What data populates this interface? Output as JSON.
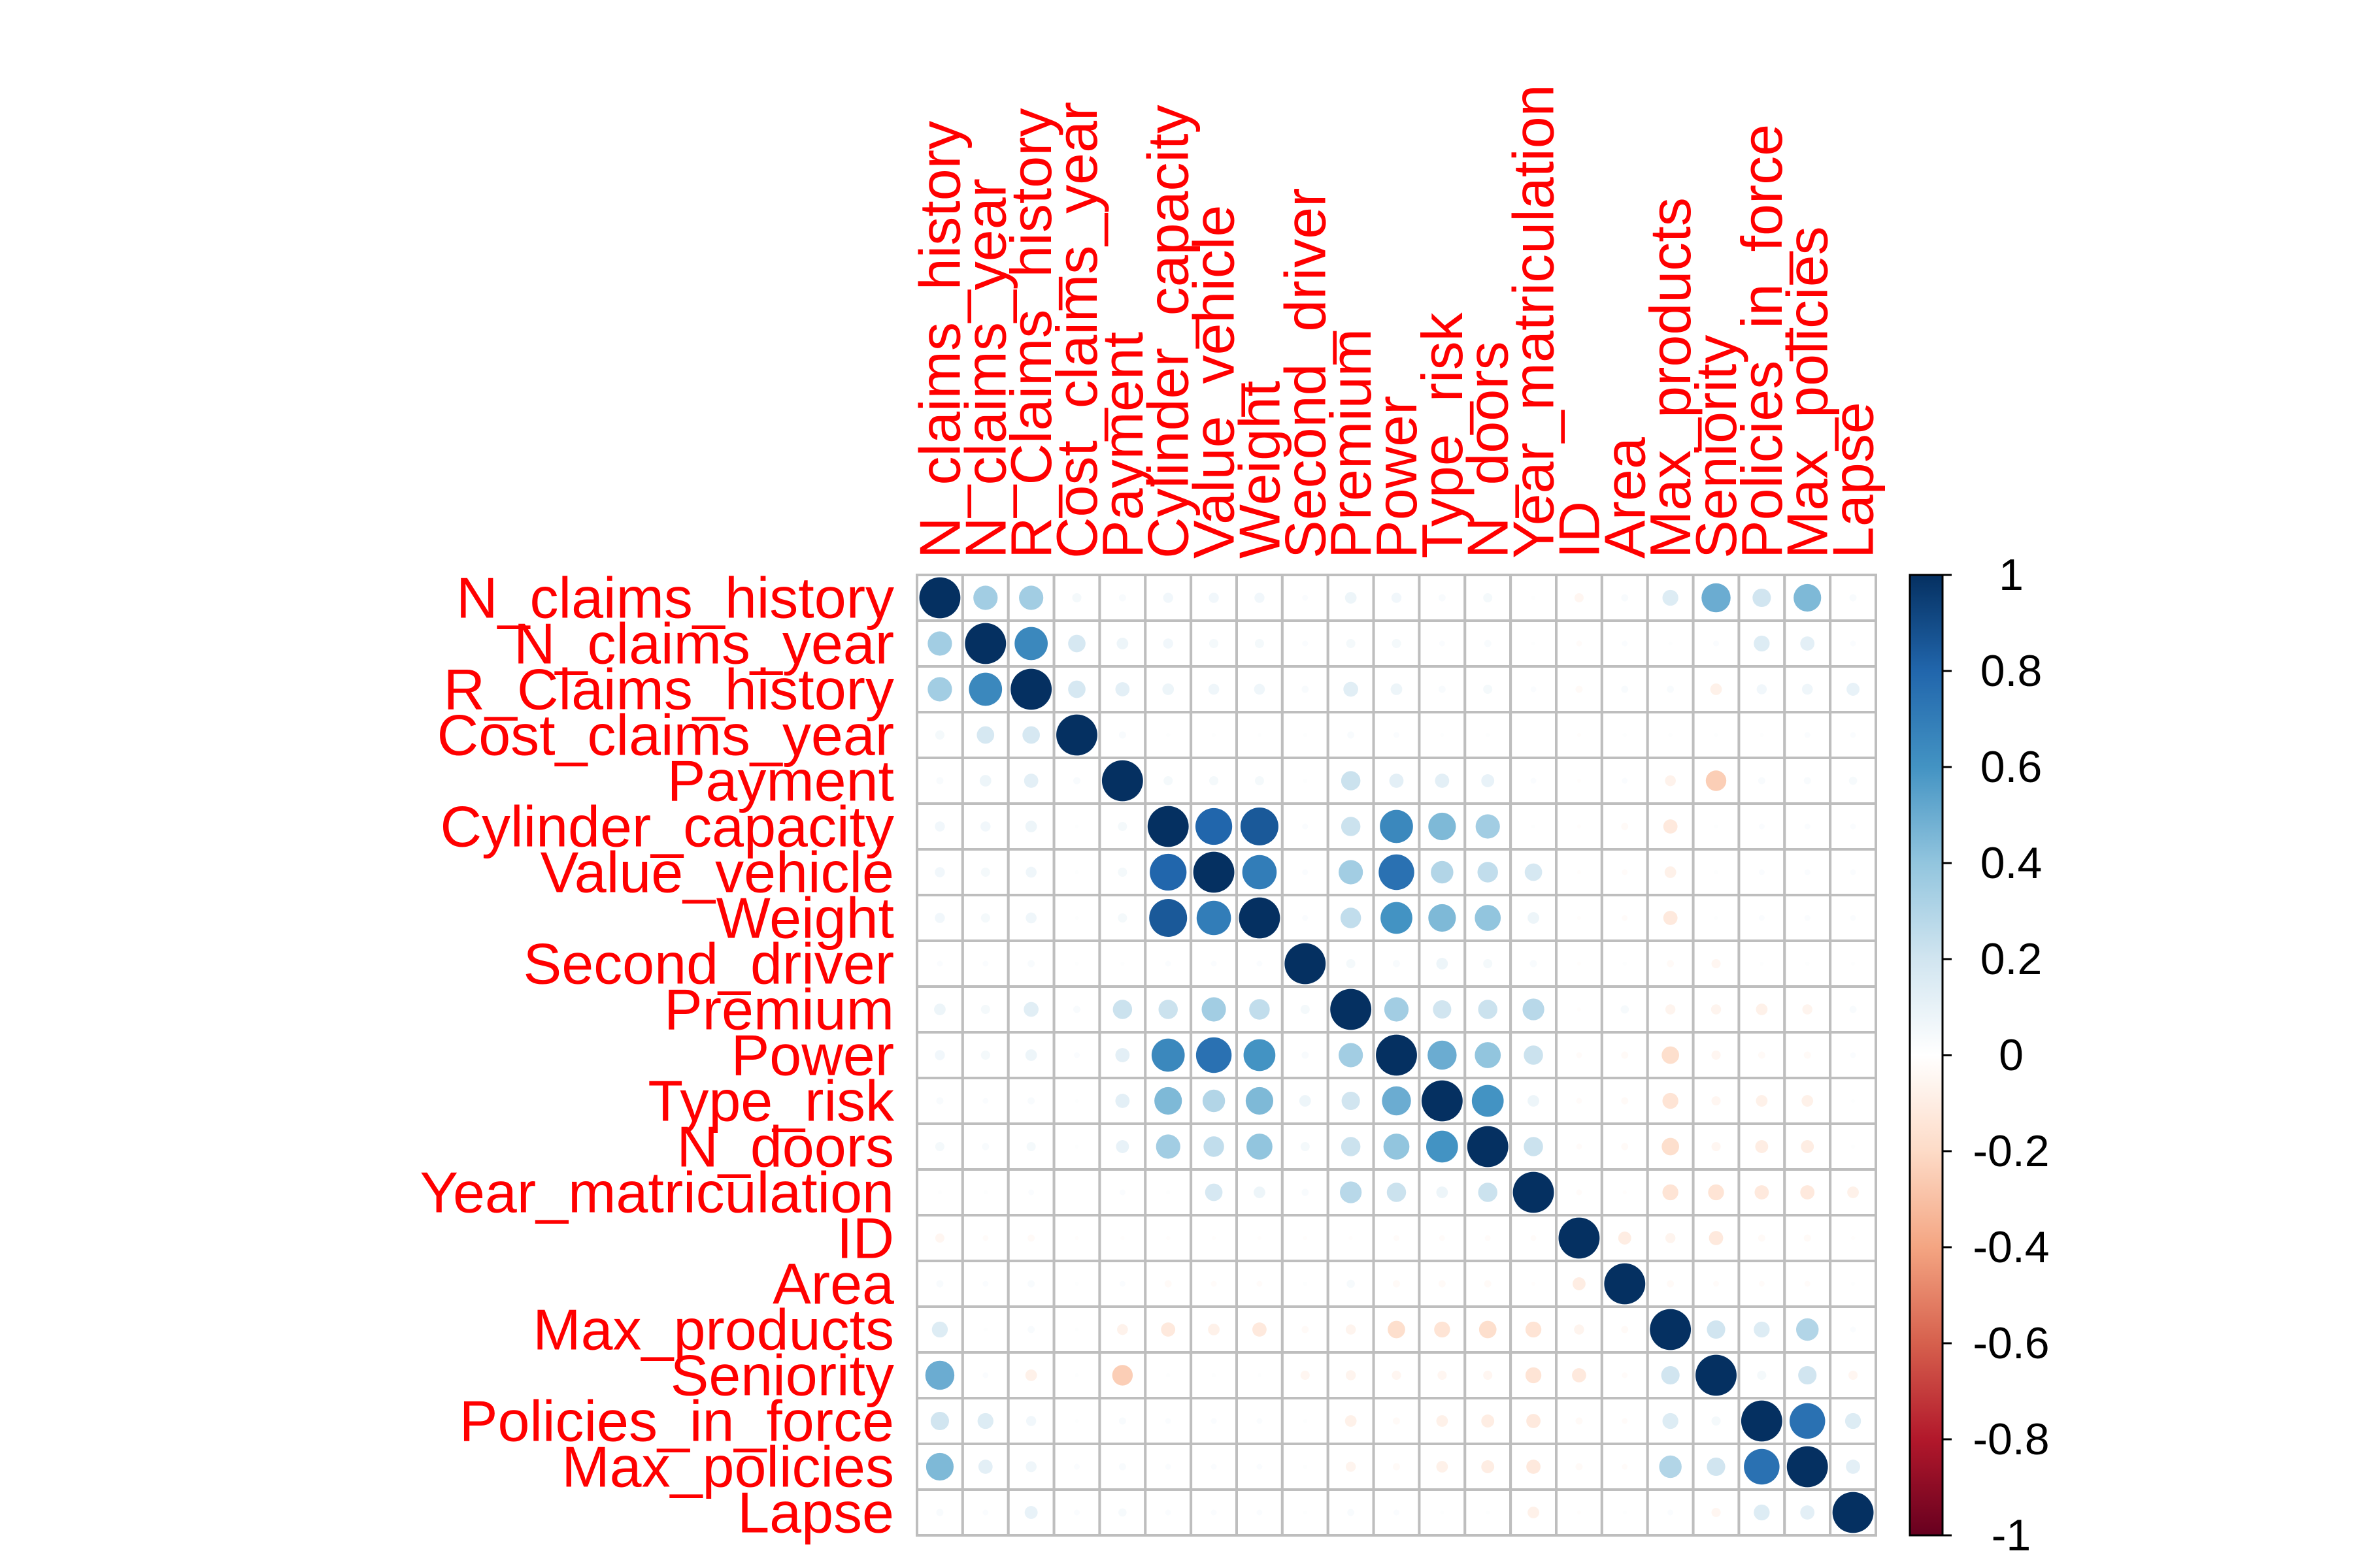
{
  "chart_data": {
    "type": "heatmap",
    "style": "corrplot-circle",
    "variables": [
      "N_claims_history",
      "N_claims_year",
      "R_Claims_history",
      "Cost_claims_year",
      "Payment",
      "Cylinder_capacity",
      "Value_vehicle",
      "Weight",
      "Second_driver",
      "Premium",
      "Power",
      "Type_risk",
      "N_doors",
      "Year_matriculation",
      "ID",
      "Area",
      "Max_products",
      "Seniority",
      "Policies_in_force",
      "Max_policies",
      "Lapse"
    ],
    "label_color": "#FF0000",
    "grid": true,
    "legend": {
      "placement": "right",
      "ticks": [
        "1",
        "0.8",
        "0.6",
        "0.4",
        "0.2",
        "0",
        "-0.2",
        "-0.4",
        "-0.6",
        "-0.8",
        "-1"
      ],
      "colors": [
        "#67001F",
        "#B2182B",
        "#D6604D",
        "#F4A582",
        "#FDDBC7",
        "#FFFFFF",
        "#D1E5F0",
        "#92C5DE",
        "#4393C3",
        "#2166AC",
        "#053061"
      ]
    },
    "correlations": {
      "matrix": [
        [
          1,
          0.35,
          0.35,
          0.05,
          0.03,
          0.06,
          0.06,
          0.06,
          0.02,
          0.08,
          0.06,
          0.03,
          0.05,
          0.01,
          -0.05,
          0.03,
          0.15,
          0.5,
          0.2,
          0.45,
          0.03
        ],
        [
          0.35,
          1,
          0.65,
          0.18,
          0.08,
          0.06,
          0.05,
          0.05,
          0.02,
          0.05,
          0.05,
          0.02,
          0.03,
          0.01,
          -0.02,
          0.02,
          0.01,
          0.02,
          0.15,
          0.12,
          0.02
        ],
        [
          0.35,
          0.65,
          1,
          0.18,
          0.12,
          0.08,
          0.07,
          0.07,
          0.03,
          0.13,
          0.08,
          0.03,
          0.05,
          0.02,
          -0.03,
          0.03,
          0.03,
          -0.08,
          0.06,
          0.07,
          0.1
        ],
        [
          0.05,
          0.18,
          0.18,
          1,
          0.03,
          0.01,
          0.01,
          0.01,
          0.01,
          0.03,
          0.02,
          0.01,
          0.01,
          0,
          -0.01,
          0.01,
          0.01,
          0.01,
          0.01,
          0.02,
          0.02
        ],
        [
          0.03,
          0.08,
          0.12,
          0.03,
          1,
          0.05,
          0.05,
          0.05,
          0.01,
          0.22,
          0.12,
          0.12,
          0.1,
          0.02,
          -0.01,
          0.02,
          -0.07,
          -0.25,
          0.03,
          0.03,
          0.04
        ],
        [
          0.06,
          0.06,
          0.08,
          0.01,
          0.05,
          1,
          0.8,
          0.85,
          0.02,
          0.22,
          0.65,
          0.45,
          0.35,
          0.01,
          -0.01,
          -0.03,
          -0.12,
          0.01,
          0.02,
          0.02,
          0.02
        ],
        [
          0.06,
          0.05,
          0.07,
          0.01,
          0.05,
          0.8,
          1,
          0.7,
          0.02,
          0.35,
          0.75,
          0.3,
          0.25,
          0.18,
          -0.01,
          -0.02,
          -0.08,
          0.01,
          0.02,
          0.02,
          0.02
        ],
        [
          0.06,
          0.05,
          0.07,
          0.01,
          0.05,
          0.85,
          0.7,
          1,
          0.02,
          0.25,
          0.6,
          0.45,
          0.4,
          0.08,
          -0.01,
          -0.02,
          -0.12,
          0.01,
          0.02,
          0.02,
          0.02
        ],
        [
          0.02,
          0.02,
          0.03,
          0.01,
          0.01,
          0.02,
          0.02,
          0.02,
          1,
          0.05,
          0.03,
          0.08,
          0.05,
          0.03,
          -0.01,
          0.01,
          -0.03,
          -0.05,
          0.01,
          0.01,
          0.01
        ],
        [
          0.08,
          0.05,
          0.13,
          0.03,
          0.22,
          0.22,
          0.35,
          0.25,
          0.05,
          1,
          0.35,
          0.2,
          0.22,
          0.28,
          -0.01,
          0.04,
          -0.06,
          -0.06,
          -0.08,
          -0.06,
          0.03
        ],
        [
          0.06,
          0.05,
          0.08,
          0.02,
          0.12,
          0.65,
          0.75,
          0.6,
          0.03,
          0.35,
          1,
          0.5,
          0.4,
          0.22,
          -0.02,
          -0.03,
          -0.18,
          -0.05,
          -0.03,
          -0.03,
          0.02
        ],
        [
          0.03,
          0.02,
          0.03,
          0.01,
          0.12,
          0.45,
          0.3,
          0.45,
          0.08,
          0.2,
          0.5,
          1,
          0.6,
          0.08,
          -0.02,
          -0.03,
          -0.15,
          -0.05,
          -0.08,
          -0.08,
          0.01
        ],
        [
          0.05,
          0.03,
          0.05,
          0.01,
          0.1,
          0.35,
          0.25,
          0.4,
          0.05,
          0.22,
          0.4,
          0.6,
          1,
          0.22,
          -0.02,
          -0.03,
          -0.18,
          -0.05,
          -0.1,
          -0.1,
          0.01
        ],
        [
          0.01,
          0.01,
          0.02,
          0,
          0.02,
          0.01,
          0.18,
          0.08,
          0.03,
          0.28,
          0.22,
          0.08,
          0.22,
          1,
          -0.02,
          -0.01,
          -0.15,
          -0.15,
          -0.12,
          -0.12,
          -0.08
        ],
        [
          -0.05,
          -0.02,
          -0.03,
          -0.01,
          -0.01,
          -0.01,
          -0.01,
          -0.01,
          -0.01,
          -0.01,
          -0.02,
          -0.02,
          -0.02,
          -0.02,
          1,
          -0.1,
          -0.06,
          -0.12,
          -0.03,
          -0.03,
          -0.01
        ],
        [
          0.03,
          0.02,
          0.03,
          0.01,
          0.02,
          -0.03,
          -0.02,
          -0.02,
          0.01,
          0.04,
          -0.03,
          -0.03,
          -0.03,
          -0.01,
          -0.1,
          1,
          -0.03,
          -0.02,
          -0.02,
          -0.02,
          0.01
        ],
        [
          0.15,
          0.01,
          0.03,
          0.01,
          -0.07,
          -0.12,
          -0.08,
          -0.12,
          -0.03,
          -0.06,
          -0.18,
          -0.15,
          -0.18,
          -0.15,
          -0.06,
          -0.03,
          1,
          0.2,
          0.15,
          0.3,
          0.02
        ],
        [
          0.5,
          0.02,
          -0.08,
          0.01,
          -0.25,
          0.01,
          0.01,
          0.01,
          -0.05,
          -0.06,
          -0.05,
          -0.05,
          -0.05,
          -0.15,
          -0.12,
          -0.02,
          0.2,
          1,
          0.05,
          0.2,
          -0.05
        ],
        [
          0.2,
          0.15,
          0.06,
          0.01,
          0.03,
          0.02,
          0.02,
          0.02,
          0.01,
          -0.08,
          -0.03,
          -0.08,
          -0.1,
          -0.12,
          -0.03,
          -0.02,
          0.15,
          0.05,
          1,
          0.75,
          0.15
        ],
        [
          0.45,
          0.12,
          0.07,
          0.02,
          0.03,
          0.02,
          0.02,
          0.02,
          0.01,
          -0.06,
          -0.03,
          -0.08,
          -0.1,
          -0.12,
          -0.03,
          -0.02,
          0.3,
          0.2,
          0.75,
          1,
          0.12
        ],
        [
          0.03,
          0.02,
          0.1,
          0.02,
          0.04,
          0.02,
          0.02,
          0.02,
          0.01,
          0.03,
          0.02,
          0.01,
          0.01,
          -0.08,
          -0.01,
          0.01,
          0.02,
          -0.05,
          0.15,
          0.12,
          1
        ]
      ]
    }
  }
}
